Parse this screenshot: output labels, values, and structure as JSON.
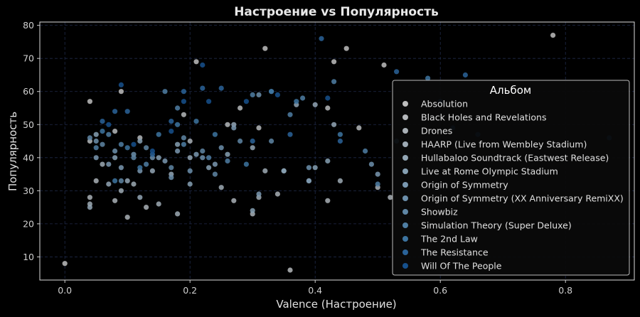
{
  "chart_data": {
    "type": "scatter",
    "title": "Настроение vs Популярность",
    "xlabel": "Valence (Настроение)",
    "ylabel": "Популярность",
    "xlim": [
      -0.04,
      0.91
    ],
    "ylim": [
      3,
      81
    ],
    "xticks": [
      0.0,
      0.2,
      0.4,
      0.6,
      0.8
    ],
    "xtick_labels": [
      "0.0",
      "0.2",
      "0.4",
      "0.6",
      "0.8"
    ],
    "yticks": [
      10,
      20,
      30,
      40,
      50,
      60,
      70,
      80
    ],
    "ytick_labels": [
      "10",
      "20",
      "30",
      "40",
      "50",
      "60",
      "70",
      "80"
    ],
    "grid": true,
    "legend": {
      "title": "Альбом",
      "placement": "right"
    },
    "colors": {
      "background": "#000000",
      "plot_border": "#dddddd",
      "grid": "#1f2a4a"
    },
    "series": [
      {
        "name": "Absolution",
        "color": "#bdbdbd",
        "points": [
          [
            0.0,
            8
          ],
          [
            0.04,
            57
          ],
          [
            0.09,
            60
          ],
          [
            0.78,
            77
          ],
          [
            0.32,
            73
          ],
          [
            0.45,
            73
          ],
          [
            0.21,
            69
          ],
          [
            0.43,
            69
          ],
          [
            0.51,
            68
          ]
        ]
      },
      {
        "name": "Black Holes and Revelations",
        "color": "#b5b8bb",
        "points": [
          [
            0.04,
            45
          ],
          [
            0.08,
            48
          ],
          [
            0.12,
            46
          ],
          [
            0.19,
            53
          ],
          [
            0.26,
            50
          ],
          [
            0.28,
            55
          ],
          [
            0.31,
            49
          ],
          [
            0.42,
            55
          ],
          [
            0.36,
            6
          ],
          [
            0.47,
            49
          ]
        ]
      },
      {
        "name": "Drones",
        "color": "#a9b0b6",
        "points": [
          [
            0.04,
            28
          ],
          [
            0.05,
            33
          ],
          [
            0.08,
            27
          ],
          [
            0.1,
            22
          ],
          [
            0.13,
            25
          ],
          [
            0.2,
            45
          ],
          [
            0.27,
            27
          ],
          [
            0.3,
            23
          ],
          [
            0.34,
            29
          ],
          [
            0.42,
            27
          ],
          [
            0.5,
            31
          ],
          [
            0.52,
            28
          ]
        ]
      },
      {
        "name": "HAARP (Live from Wembley Stadium)",
        "color": "#9eaab4",
        "points": [
          [
            0.04,
            26
          ],
          [
            0.06,
            38
          ],
          [
            0.09,
            30
          ],
          [
            0.11,
            32
          ],
          [
            0.15,
            26
          ],
          [
            0.18,
            23
          ],
          [
            0.25,
            31
          ],
          [
            0.31,
            28
          ],
          [
            0.32,
            36
          ],
          [
            0.35,
            36
          ],
          [
            0.39,
            33
          ],
          [
            0.44,
            33
          ]
        ]
      },
      {
        "name": "Hullabaloo Soundtrack (Eastwest Release)",
        "color": "#93a6b5",
        "points": [
          [
            0.04,
            25
          ],
          [
            0.07,
            32
          ],
          [
            0.1,
            33
          ],
          [
            0.12,
            28
          ],
          [
            0.14,
            36
          ],
          [
            0.17,
            35
          ],
          [
            0.2,
            40
          ],
          [
            0.27,
            50
          ],
          [
            0.3,
            43
          ],
          [
            0.37,
            56
          ],
          [
            0.4,
            56
          ],
          [
            0.43,
            50
          ]
        ]
      },
      {
        "name": "Live at Rome Olympic Stadium",
        "color": "#86a0b3",
        "points": [
          [
            0.05,
            47
          ],
          [
            0.08,
            40
          ],
          [
            0.12,
            45
          ],
          [
            0.15,
            40
          ],
          [
            0.18,
            44
          ],
          [
            0.2,
            32
          ],
          [
            0.23,
            37
          ],
          [
            0.26,
            41
          ],
          [
            0.3,
            24
          ],
          [
            0.35,
            36
          ],
          [
            0.4,
            37
          ],
          [
            0.42,
            39
          ]
        ]
      },
      {
        "name": "Origin of Symmetry",
        "color": "#7a98b0",
        "points": [
          [
            0.05,
            40
          ],
          [
            0.07,
            38
          ],
          [
            0.09,
            37
          ],
          [
            0.12,
            36
          ],
          [
            0.16,
            39
          ],
          [
            0.18,
            42
          ],
          [
            0.21,
            41
          ],
          [
            0.24,
            38
          ],
          [
            0.27,
            49
          ],
          [
            0.31,
            29
          ],
          [
            0.39,
            33
          ],
          [
            0.5,
            35
          ]
        ]
      },
      {
        "name": "Origin of Symmetry (XX Anniversary RemiXX)",
        "color": "#6c8fab",
        "points": [
          [
            0.05,
            45
          ],
          [
            0.08,
            42
          ],
          [
            0.11,
            41
          ],
          [
            0.14,
            40
          ],
          [
            0.17,
            34
          ],
          [
            0.2,
            36
          ],
          [
            0.22,
            40
          ],
          [
            0.25,
            43
          ],
          [
            0.31,
            59
          ],
          [
            0.39,
            37
          ],
          [
            0.49,
            38
          ]
        ]
      },
      {
        "name": "Showbiz",
        "color": "#5f86a5",
        "points": [
          [
            0.04,
            46
          ],
          [
            0.06,
            44
          ],
          [
            0.09,
            33
          ],
          [
            0.11,
            40
          ],
          [
            0.13,
            43
          ],
          [
            0.17,
            37
          ],
          [
            0.19,
            46
          ],
          [
            0.22,
            42
          ],
          [
            0.24,
            35
          ],
          [
            0.28,
            45
          ],
          [
            0.33,
            45
          ]
        ]
      },
      {
        "name": "Simulation Theory (Super Deluxe)",
        "color": "#4f7ea3",
        "points": [
          [
            0.05,
            43
          ],
          [
            0.07,
            47
          ],
          [
            0.09,
            44
          ],
          [
            0.13,
            38
          ],
          [
            0.16,
            60
          ],
          [
            0.18,
            55
          ],
          [
            0.19,
            44
          ],
          [
            0.23,
            40
          ],
          [
            0.26,
            39
          ],
          [
            0.3,
            59
          ],
          [
            0.33,
            60
          ],
          [
            0.36,
            53
          ],
          [
            0.38,
            58
          ],
          [
            0.43,
            63
          ],
          [
            0.48,
            42
          ],
          [
            0.5,
            32
          ]
        ]
      },
      {
        "name": "The 2nd Law",
        "color": "#3d74a0",
        "points": [
          [
            0.06,
            48
          ],
          [
            0.08,
            33
          ],
          [
            0.1,
            43
          ],
          [
            0.12,
            37
          ],
          [
            0.15,
            47
          ],
          [
            0.18,
            50
          ],
          [
            0.21,
            51
          ],
          [
            0.24,
            47
          ],
          [
            0.29,
            38
          ],
          [
            0.33,
            60
          ],
          [
            0.37,
            57
          ],
          [
            0.44,
            47
          ],
          [
            0.53,
            45
          ],
          [
            0.58,
            64
          ]
        ]
      },
      {
        "name": "The Resistance",
        "color": "#2a6399",
        "points": [
          [
            0.06,
            51
          ],
          [
            0.08,
            54
          ],
          [
            0.1,
            54
          ],
          [
            0.14,
            41
          ],
          [
            0.17,
            51
          ],
          [
            0.19,
            60
          ],
          [
            0.22,
            61
          ],
          [
            0.25,
            61
          ],
          [
            0.3,
            45
          ],
          [
            0.36,
            47
          ],
          [
            0.41,
            76
          ],
          [
            0.44,
            45
          ],
          [
            0.53,
            66
          ],
          [
            0.6,
            57
          ],
          [
            0.64,
            65
          ]
        ]
      },
      {
        "name": "Will Of The People",
        "color": "#16508c",
        "points": [
          [
            0.07,
            50
          ],
          [
            0.09,
            62
          ],
          [
            0.11,
            44
          ],
          [
            0.14,
            42
          ],
          [
            0.17,
            48
          ],
          [
            0.19,
            57
          ],
          [
            0.22,
            68
          ],
          [
            0.23,
            57
          ],
          [
            0.29,
            57
          ],
          [
            0.34,
            59
          ],
          [
            0.42,
            58
          ],
          [
            0.62,
            49
          ],
          [
            0.66,
            47
          ],
          [
            0.87,
            46
          ]
        ]
      }
    ]
  }
}
